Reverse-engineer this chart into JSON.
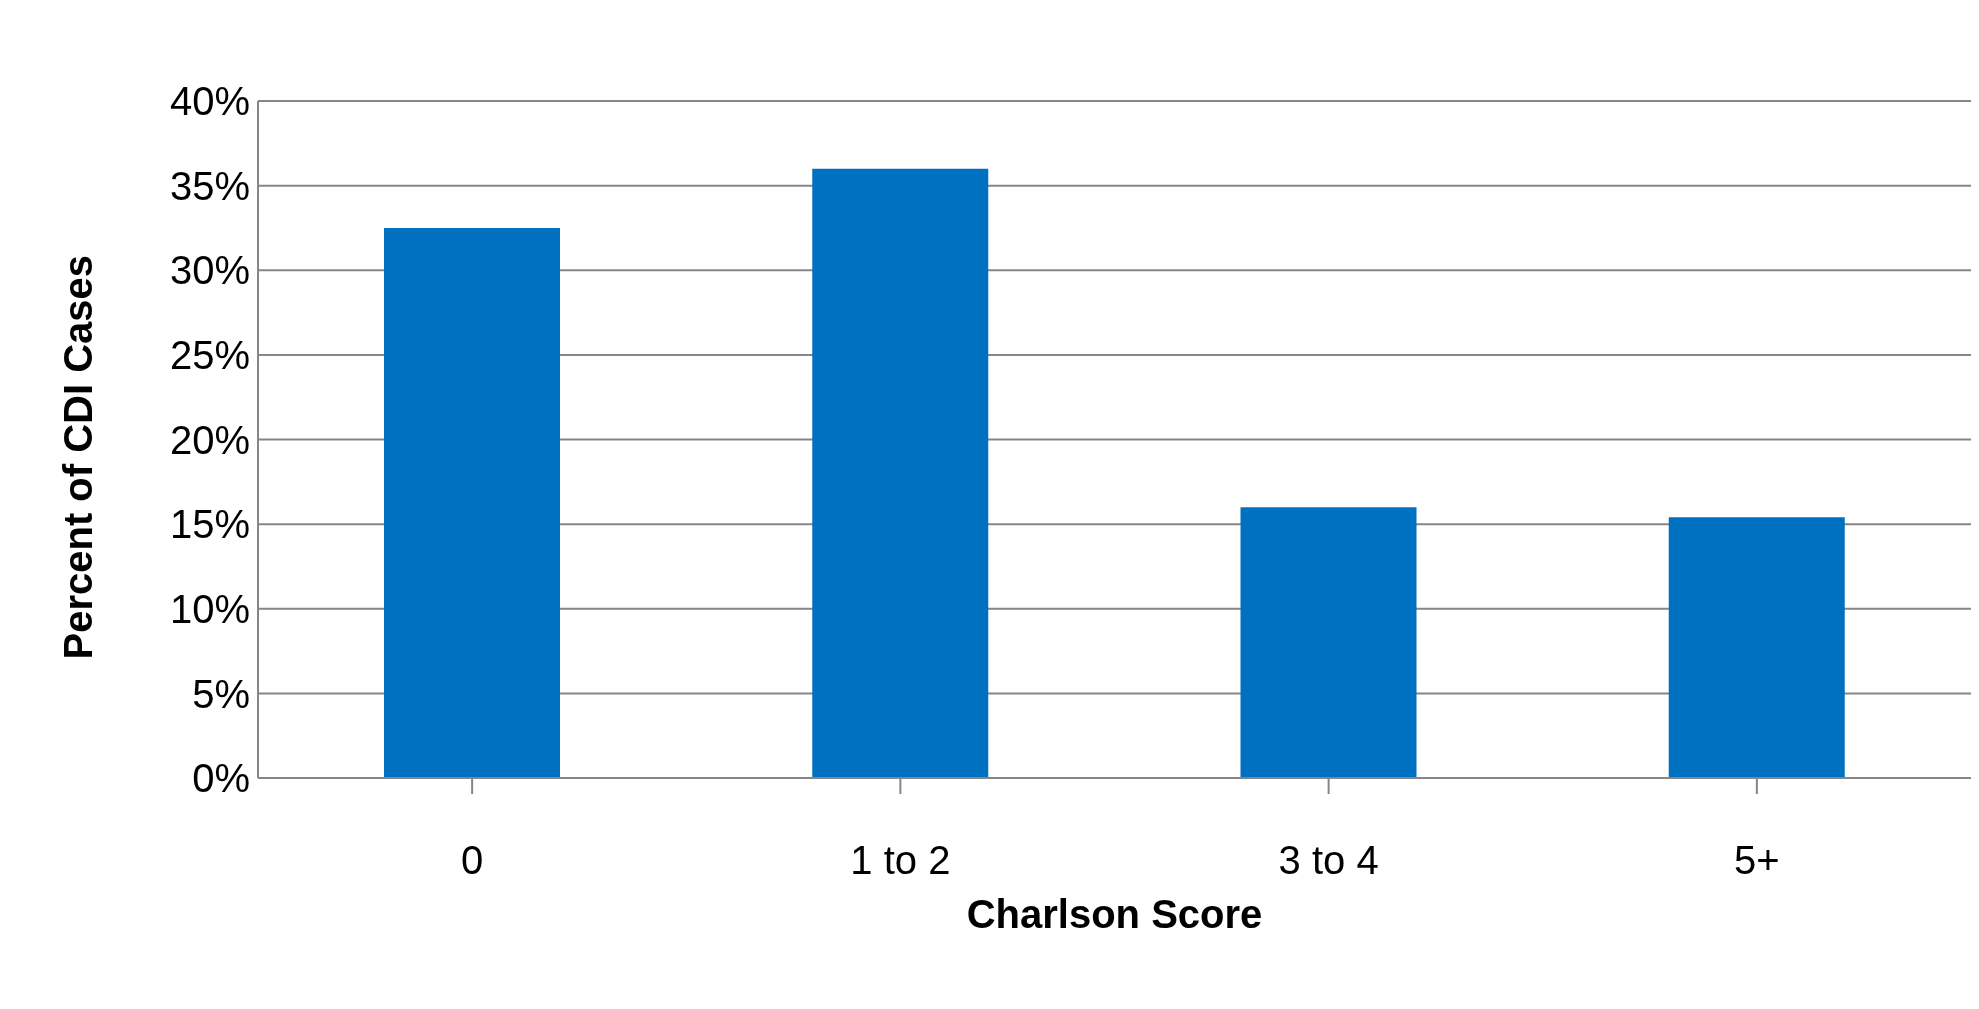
{
  "chart_data": {
    "type": "bar",
    "xlabel": "Charlson Score",
    "ylabel": "Percent of CDI Cases",
    "categories": [
      "0",
      "1 to 2",
      "3 to 4",
      "5+"
    ],
    "values": [
      32.5,
      36.0,
      16.0,
      15.4
    ],
    "color": "#0070c0",
    "ylim": [
      0,
      40
    ],
    "yticks": [
      {
        "value": 0,
        "label": "0%"
      },
      {
        "value": 5,
        "label": "5%"
      },
      {
        "value": 10,
        "label": "10%"
      },
      {
        "value": 15,
        "label": "15%"
      },
      {
        "value": 20,
        "label": "20%"
      },
      {
        "value": 25,
        "label": "25%"
      },
      {
        "value": 30,
        "label": "30%"
      },
      {
        "value": 35,
        "label": "35%"
      },
      {
        "value": 40,
        "label": "40%"
      }
    ],
    "grid": "y"
  }
}
